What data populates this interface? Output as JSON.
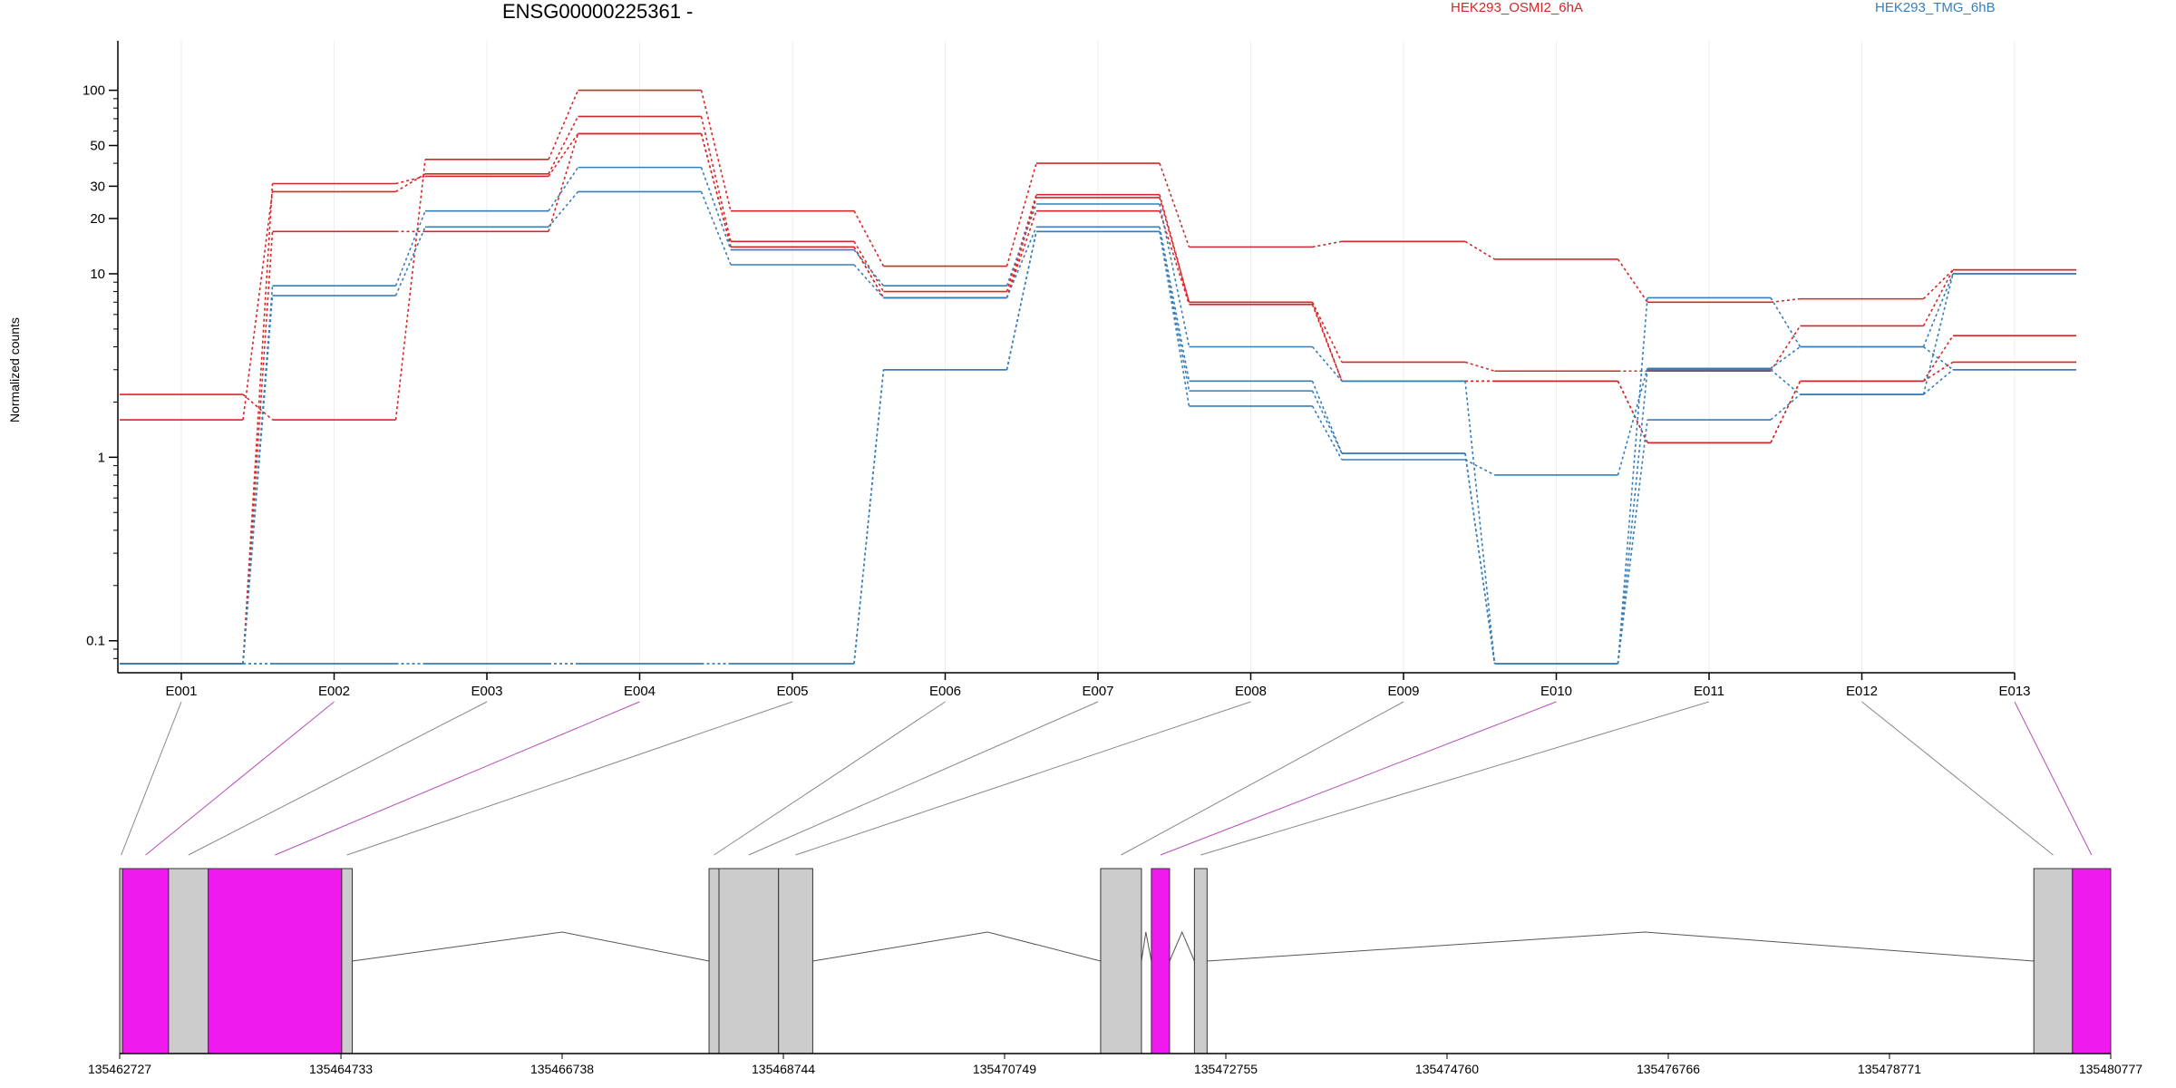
{
  "chart_data": {
    "type": "line",
    "title": "ENSG00000225361 -",
    "ylabel": "Normalized counts",
    "yscale": "log",
    "ylim": [
      0.075,
      140
    ],
    "yticks": [
      0.1,
      1,
      10,
      20,
      30,
      50,
      100
    ],
    "ytick_labels": [
      "0.1",
      "1",
      "10",
      "20",
      "30",
      "50",
      "100"
    ],
    "categories": [
      "E001",
      "E002",
      "E003",
      "E004",
      "E005",
      "E006",
      "E007",
      "E008",
      "E009",
      "E010",
      "E011",
      "E012",
      "E013"
    ],
    "conditions": [
      {
        "name": "HEK293_OSMI2_6hA",
        "color": "#d62728"
      },
      {
        "name": "HEK293_TMG_6hB",
        "color": "#377eb8"
      }
    ],
    "series": [
      {
        "condition": 0,
        "values": [
          2.2,
          1.6,
          42,
          100,
          22,
          11,
          40,
          14,
          15,
          12,
          7,
          7.3,
          10.5
        ]
      },
      {
        "condition": 0,
        "values": [
          1.6,
          28,
          35,
          72,
          15,
          8,
          27,
          7,
          3.3,
          2.95,
          2.95,
          5.2,
          10.5
        ]
      },
      {
        "condition": 0,
        "values": [
          0.075,
          31,
          34,
          58,
          14,
          7.4,
          22,
          6.8,
          2.6,
          2.6,
          1.2,
          2.6,
          4.6
        ]
      },
      {
        "condition": 0,
        "values": [
          0.075,
          17,
          17,
          58,
          14,
          7.4,
          26,
          7,
          2.6,
          2.6,
          1.2,
          2.6,
          3.3
        ]
      },
      {
        "condition": 1,
        "values": [
          0.075,
          8.6,
          22,
          38,
          13.5,
          8.6,
          24,
          4,
          2.6,
          0.075,
          7.4,
          4,
          10
        ]
      },
      {
        "condition": 1,
        "values": [
          0.075,
          7.6,
          18,
          28,
          11.2,
          7.4,
          18,
          2.6,
          1.05,
          0.075,
          3,
          2.2,
          10
        ]
      },
      {
        "condition": 1,
        "values": [
          0.075,
          0.075,
          0.075,
          0.075,
          0.075,
          3,
          17,
          2.3,
          1.05,
          0.075,
          1.6,
          2.2,
          3
        ]
      },
      {
        "condition": 1,
        "values": [
          0.075,
          0.075,
          0.075,
          0.075,
          0.075,
          3,
          17,
          1.9,
          0.97,
          0.8,
          3.05,
          4,
          3
        ]
      }
    ],
    "genomic_axis": {
      "ticks": [
        135462727,
        135464733,
        135466738,
        135468744,
        135470749,
        135472755,
        135474760,
        135476766,
        135478771,
        135480777
      ],
      "range": [
        135462727,
        135480777
      ]
    },
    "exon_bins": [
      {
        "label": "E001",
        "start": 135462727,
        "end": 135462754,
        "fill": "#cccccc",
        "highlight": false
      },
      {
        "label": "E002",
        "start": 135462754,
        "end": 135463170,
        "fill": "#ee1aee",
        "highlight": true
      },
      {
        "label": "E003",
        "start": 135463170,
        "end": 135463530,
        "fill": "#cccccc",
        "highlight": false
      },
      {
        "label": "E004",
        "start": 135463530,
        "end": 135464740,
        "fill": "#ee1aee",
        "highlight": true
      },
      {
        "label": "E005",
        "start": 135464740,
        "end": 135464835,
        "fill": "#cccccc",
        "highlight": false
      },
      {
        "label": "E006",
        "start": 135468070,
        "end": 135468160,
        "fill": "#cccccc",
        "highlight": false
      },
      {
        "label": "E007",
        "start": 135468160,
        "end": 135468700,
        "fill": "#cccccc",
        "highlight": false
      },
      {
        "label": "E008",
        "start": 135468700,
        "end": 135469010,
        "fill": "#cccccc",
        "highlight": false
      },
      {
        "label": "E009",
        "start": 135471620,
        "end": 135471990,
        "fill": "#cccccc",
        "highlight": false
      },
      {
        "label": "E010",
        "start": 135472080,
        "end": 135472245,
        "fill": "#ee1aee",
        "highlight": true
      },
      {
        "label": "E011",
        "start": 135472470,
        "end": 135472585,
        "fill": "#cccccc",
        "highlight": false
      },
      {
        "label": "E012",
        "start": 135480080,
        "end": 135480430,
        "fill": "#cccccc",
        "highlight": false
      },
      {
        "label": "E013",
        "start": 135480430,
        "end": 135480777,
        "fill": "#ee1aee",
        "highlight": true
      }
    ],
    "introns": [
      {
        "start": 135464835,
        "end": 135468070,
        "apex": 135466738
      },
      {
        "start": 135469010,
        "end": 135471620,
        "apex": 135470595
      },
      {
        "start": 135471990,
        "end": 135472080,
        "apex": 135472030
      },
      {
        "start": 135472245,
        "end": 135472470,
        "apex": 135472358
      },
      {
        "start": 135472585,
        "end": 135480080,
        "apex": 135476555
      }
    ]
  }
}
